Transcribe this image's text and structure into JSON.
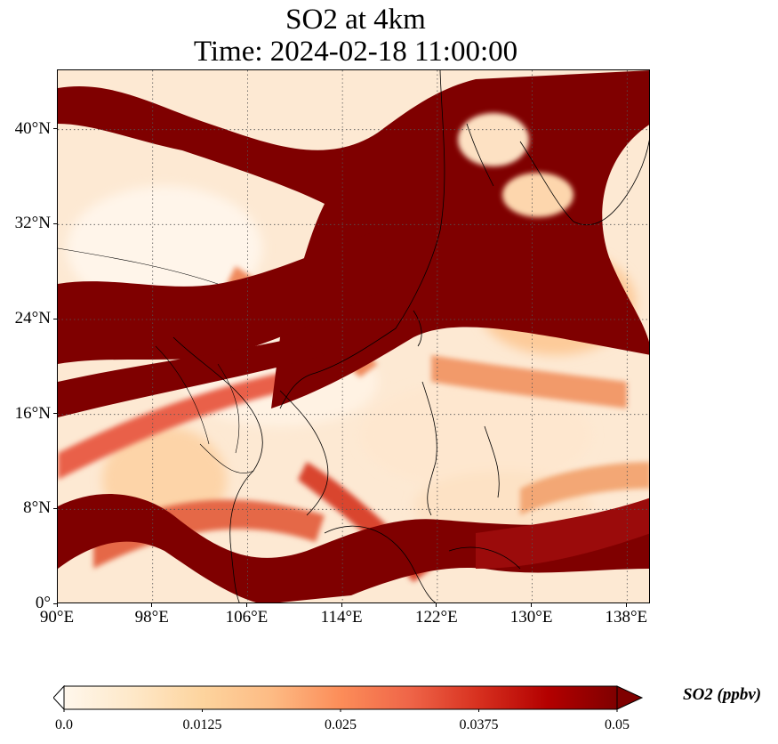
{
  "title": {
    "line1": "SO2 at 4km",
    "line2": "Time: 2024-02-18 11:00:00"
  },
  "map": {
    "extent": {
      "lon_min": 90,
      "lon_max": 140,
      "lat_min": 0,
      "lat_max": 45
    },
    "x_ticks": [
      {
        "value": 90,
        "label": "90°E"
      },
      {
        "value": 98,
        "label": "98°E"
      },
      {
        "value": 106,
        "label": "106°E"
      },
      {
        "value": 114,
        "label": "114°E"
      },
      {
        "value": 122,
        "label": "122°E"
      },
      {
        "value": 130,
        "label": "130°E"
      },
      {
        "value": 138,
        "label": "138°E"
      }
    ],
    "y_ticks": [
      {
        "value": 0,
        "label": "0°"
      },
      {
        "value": 8,
        "label": "8°N"
      },
      {
        "value": 16,
        "label": "16°N"
      },
      {
        "value": 24,
        "label": "24°N"
      },
      {
        "value": 32,
        "label": "32°N"
      },
      {
        "value": 40,
        "label": "40°N"
      }
    ],
    "gridlines": "dotted",
    "coastlines": true,
    "borders": true
  },
  "colorbar": {
    "label": "SO2 (ppbv)",
    "min": 0.0,
    "max": 0.05,
    "extend": "both",
    "colormap": "OrRd",
    "stops": [
      "#fff7ec",
      "#fee8c8",
      "#fdd49e",
      "#fdbb84",
      "#fc8d59",
      "#ef6548",
      "#d7301f",
      "#b30000",
      "#7f0000"
    ],
    "ticks": [
      {
        "value": 0.0,
        "label": "0.0"
      },
      {
        "value": 0.0125,
        "label": "0.0125"
      },
      {
        "value": 0.025,
        "label": "0.025"
      },
      {
        "value": 0.0375,
        "label": "0.0375"
      },
      {
        "value": 0.05,
        "label": "0.05"
      }
    ]
  }
}
